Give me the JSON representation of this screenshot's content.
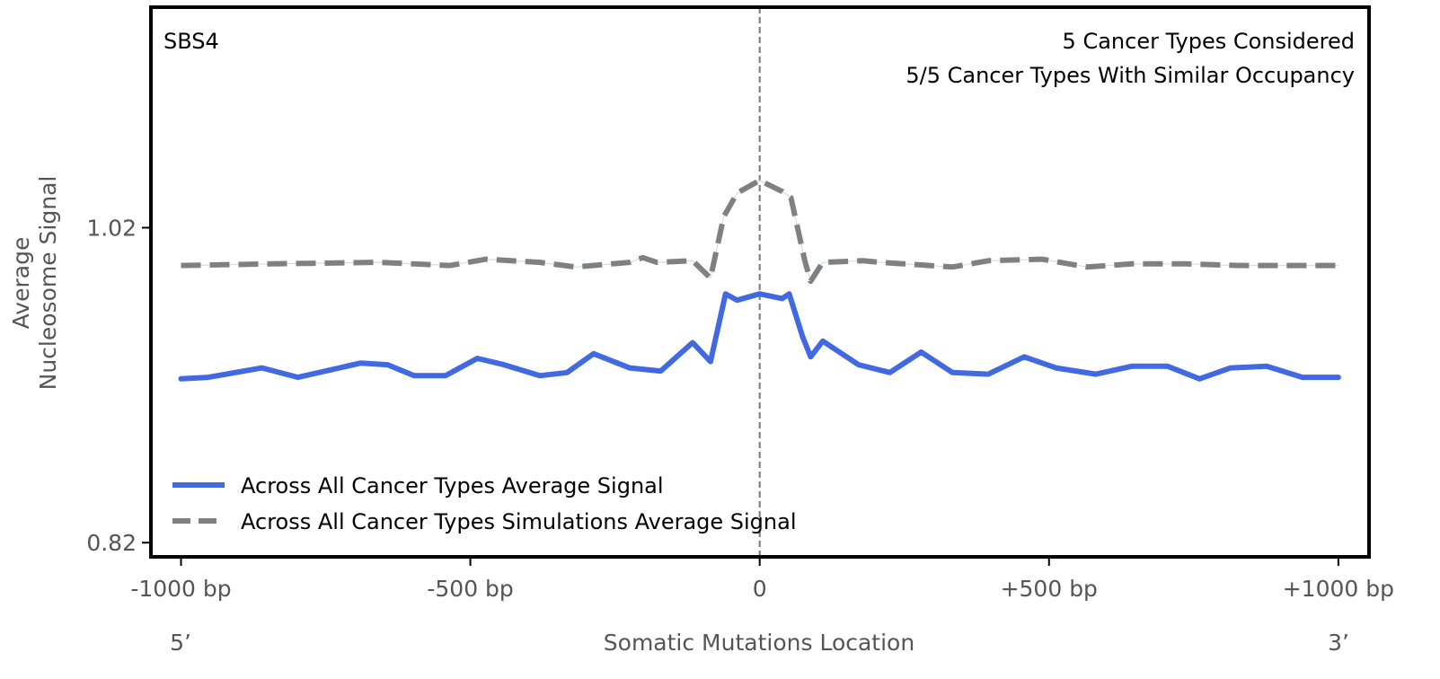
{
  "chart_data": {
    "type": "line",
    "panel_label": "SBS4",
    "annotations": [
      "5 Cancer Types Considered",
      "5/5 Cancer Types With Similar Occupancy"
    ],
    "xlabel": "Somatic Mutations Location",
    "xlabel_left": "5’",
    "xlabel_right": "3’",
    "ylabel_lines": [
      "Average",
      "Nucleosome Signal"
    ],
    "xlim": [
      -1052,
      1053
    ],
    "ylim": [
      0.811,
      1.16
    ],
    "x_ticks": [
      {
        "value": -1000,
        "label": "-1000 bp"
      },
      {
        "value": -500,
        "label": "-500 bp"
      },
      {
        "value": 0,
        "label": "0"
      },
      {
        "value": 500,
        "label": "+500 bp"
      },
      {
        "value": 1000,
        "label": "+1000 bp"
      }
    ],
    "y_ticks": [
      {
        "value": 0.82,
        "label": "0.82"
      },
      {
        "value": 1.02,
        "label": "1.02"
      }
    ],
    "vline_x": 0,
    "grid": false,
    "legend_position": "bottom-left",
    "series": [
      {
        "name": "Across All Cancer Types Average Signal",
        "color": "#4169E1",
        "style": "solid",
        "x": [
          -1000,
          -953,
          -860,
          -798,
          -690,
          -643,
          -597,
          -543,
          -488,
          -442,
          -380,
          -333,
          -287,
          -225,
          -171,
          -116,
          -85,
          -59,
          -39,
          0,
          39,
          51,
          74,
          88,
          109,
          171,
          225,
          279,
          333,
          395,
          457,
          512,
          581,
          643,
          705,
          760,
          814,
          876,
          938,
          1000
        ],
        "y": [
          0.924,
          0.925,
          0.931,
          0.925,
          0.934,
          0.933,
          0.926,
          0.926,
          0.937,
          0.933,
          0.926,
          0.928,
          0.94,
          0.931,
          0.929,
          0.947,
          0.935,
          0.978,
          0.974,
          0.978,
          0.975,
          0.978,
          0.951,
          0.938,
          0.948,
          0.933,
          0.928,
          0.941,
          0.928,
          0.927,
          0.938,
          0.931,
          0.927,
          0.932,
          0.932,
          0.924,
          0.931,
          0.932,
          0.925,
          0.925
        ]
      },
      {
        "name": "Across All Cancer Types Simulations Average Signal",
        "color": "#808080",
        "style": "dashed",
        "x": [
          -1000,
          -845,
          -659,
          -535,
          -473,
          -380,
          -318,
          -225,
          -202,
          -178,
          -116,
          -85,
          -62,
          -39,
          0,
          39,
          54,
          78,
          88,
          109,
          178,
          209,
          333,
          395,
          488,
          566,
          643,
          736,
          829,
          1000
        ],
        "y": [
          0.996,
          0.997,
          0.998,
          0.996,
          1.0,
          0.998,
          0.995,
          0.998,
          1.001,
          0.998,
          0.999,
          0.988,
          1.027,
          1.042,
          1.05,
          1.043,
          1.039,
          0.999,
          0.986,
          0.998,
          0.999,
          0.998,
          0.995,
          0.999,
          1.0,
          0.995,
          0.997,
          0.997,
          0.996,
          0.996
        ]
      }
    ]
  }
}
